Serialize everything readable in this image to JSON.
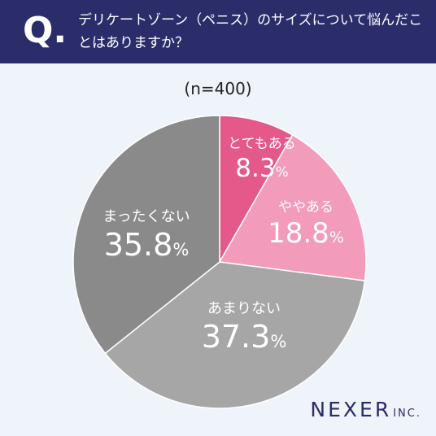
{
  "header": {
    "q_mark": "Q.",
    "question": "デリケートゾーン（ペニス）のサイズについて悩んだことはありますか？"
  },
  "sample_size": "(n=400)",
  "chart_data": {
    "type": "pie",
    "title": "",
    "start_angle_deg": 0,
    "direction": "clockwise",
    "slices": [
      {
        "label": "とてもある",
        "value": 8.3,
        "display": "8.3",
        "unit": "%",
        "color": "#e5588a"
      },
      {
        "label": "ややある",
        "value": 18.8,
        "display": "18.8",
        "unit": "%",
        "color": "#f29bbb"
      },
      {
        "label": "あまりない",
        "value": 37.3,
        "display": "37.3",
        "unit": "%",
        "color": "#a6a6a6"
      },
      {
        "label": "まったくない",
        "value": 35.8,
        "display": "35.8",
        "unit": "%",
        "color": "#8a8a8a"
      }
    ]
  },
  "logo": {
    "main": "NEXER",
    "suffix": "INC."
  }
}
